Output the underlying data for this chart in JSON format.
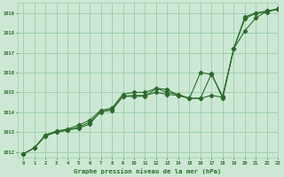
{
  "title": "Graphe pression niveau de la mer (hPa)",
  "bg_color": "#cce8d4",
  "grid_color": "#99ccaa",
  "line_color": "#2d6b2d",
  "xlim": [
    -0.5,
    23
  ],
  "ylim": [
    1011.7,
    1019.5
  ],
  "xticks": [
    0,
    1,
    2,
    3,
    4,
    5,
    6,
    7,
    8,
    9,
    10,
    11,
    12,
    13,
    14,
    15,
    16,
    17,
    18,
    19,
    20,
    21,
    22,
    23
  ],
  "yticks": [
    1012,
    1013,
    1014,
    1015,
    1016,
    1017,
    1018,
    1019
  ],
  "lineA_x": [
    0,
    1,
    2,
    3,
    4,
    5,
    6,
    7,
    8,
    9,
    10,
    11,
    12,
    13,
    14,
    15,
    16,
    17,
    18,
    19,
    20,
    21,
    22,
    23
  ],
  "lineA_y": [
    1011.9,
    1012.2,
    1012.8,
    1013.0,
    1013.1,
    1013.25,
    1013.5,
    1014.0,
    1014.15,
    1014.8,
    1014.85,
    1014.85,
    1015.0,
    1014.9,
    1014.85,
    1014.7,
    1014.7,
    1014.85,
    1014.75,
    1017.2,
    1018.1,
    1018.75,
    1019.1,
    1019.2
  ],
  "lineB_x": [
    0,
    1,
    2,
    3,
    4,
    5,
    6,
    7,
    8,
    9,
    10,
    11,
    12,
    13,
    14,
    15,
    16,
    17,
    18,
    19,
    20,
    21,
    22,
    23
  ],
  "lineB_y": [
    1011.9,
    1012.2,
    1012.85,
    1013.05,
    1013.15,
    1013.35,
    1013.6,
    1014.1,
    1014.2,
    1014.9,
    1015.0,
    1015.0,
    1015.2,
    1015.0,
    1014.9,
    1014.7,
    1016.0,
    1015.9,
    1014.8,
    1017.2,
    1018.8,
    1019.0,
    1019.1,
    1019.2
  ],
  "lineC_x": [
    0,
    1,
    2,
    3,
    4,
    5,
    6,
    7,
    8,
    9,
    10,
    11,
    12,
    13,
    14,
    15,
    16,
    17,
    18,
    19,
    20,
    21,
    22,
    23
  ],
  "lineC_y": [
    1011.9,
    1012.2,
    1012.85,
    1013.0,
    1013.1,
    1013.2,
    1013.4,
    1014.05,
    1014.1,
    1014.8,
    1014.8,
    1014.8,
    1015.2,
    1015.15,
    1014.85,
    1014.7,
    1014.7,
    1015.95,
    1014.7,
    1017.2,
    1018.7,
    1019.0,
    1019.05,
    1019.2
  ]
}
